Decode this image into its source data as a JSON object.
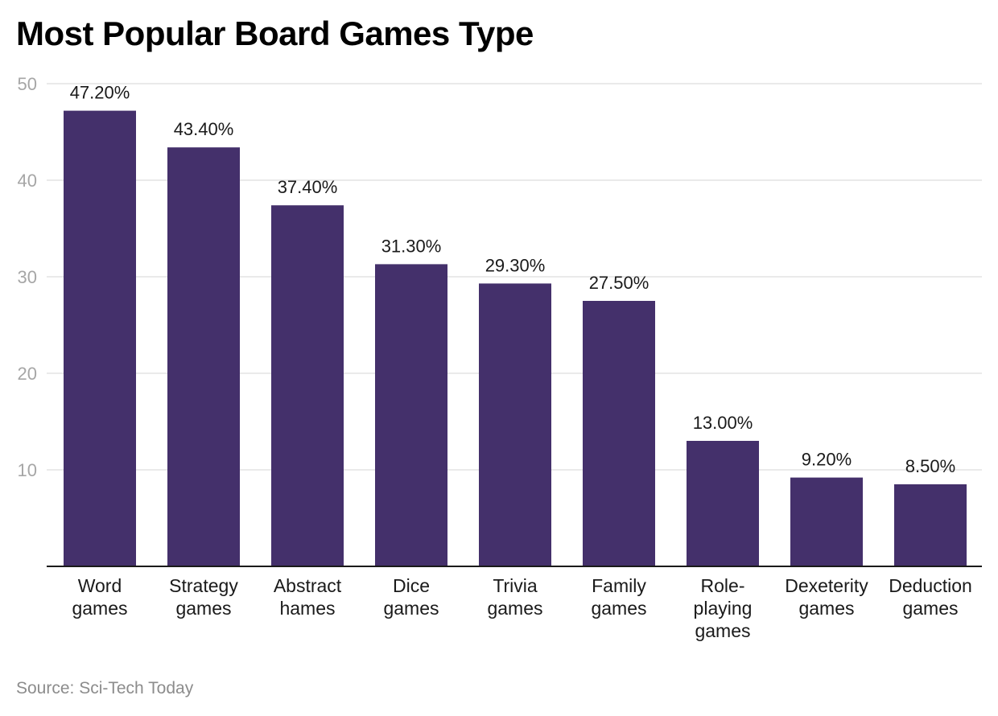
{
  "chart_data": {
    "type": "bar",
    "title": "Most Popular Board Games Type",
    "categories": [
      [
        "Word",
        "games"
      ],
      [
        "Strategy",
        "games"
      ],
      [
        "Abstract",
        "hames"
      ],
      [
        "Dice",
        "games"
      ],
      [
        "Trivia",
        "games"
      ],
      [
        "Family",
        "games"
      ],
      [
        "Role-",
        "playing",
        "games"
      ],
      [
        "Dexeterity",
        "games"
      ],
      [
        "Deduction",
        "games"
      ]
    ],
    "values": [
      47.2,
      43.4,
      37.4,
      31.3,
      29.3,
      27.5,
      13.0,
      9.2,
      8.5
    ],
    "data_labels": [
      "47.20%",
      "43.40%",
      "37.40%",
      "31.30%",
      "29.30%",
      "27.50%",
      "13.00%",
      "9.20%",
      "8.50%"
    ],
    "y_ticks": [
      10,
      20,
      30,
      40,
      50
    ],
    "ylim": [
      0,
      50
    ],
    "grid": true,
    "legend": "none",
    "bar_color": "#44306b",
    "source": "Source: Sci-Tech Today"
  }
}
